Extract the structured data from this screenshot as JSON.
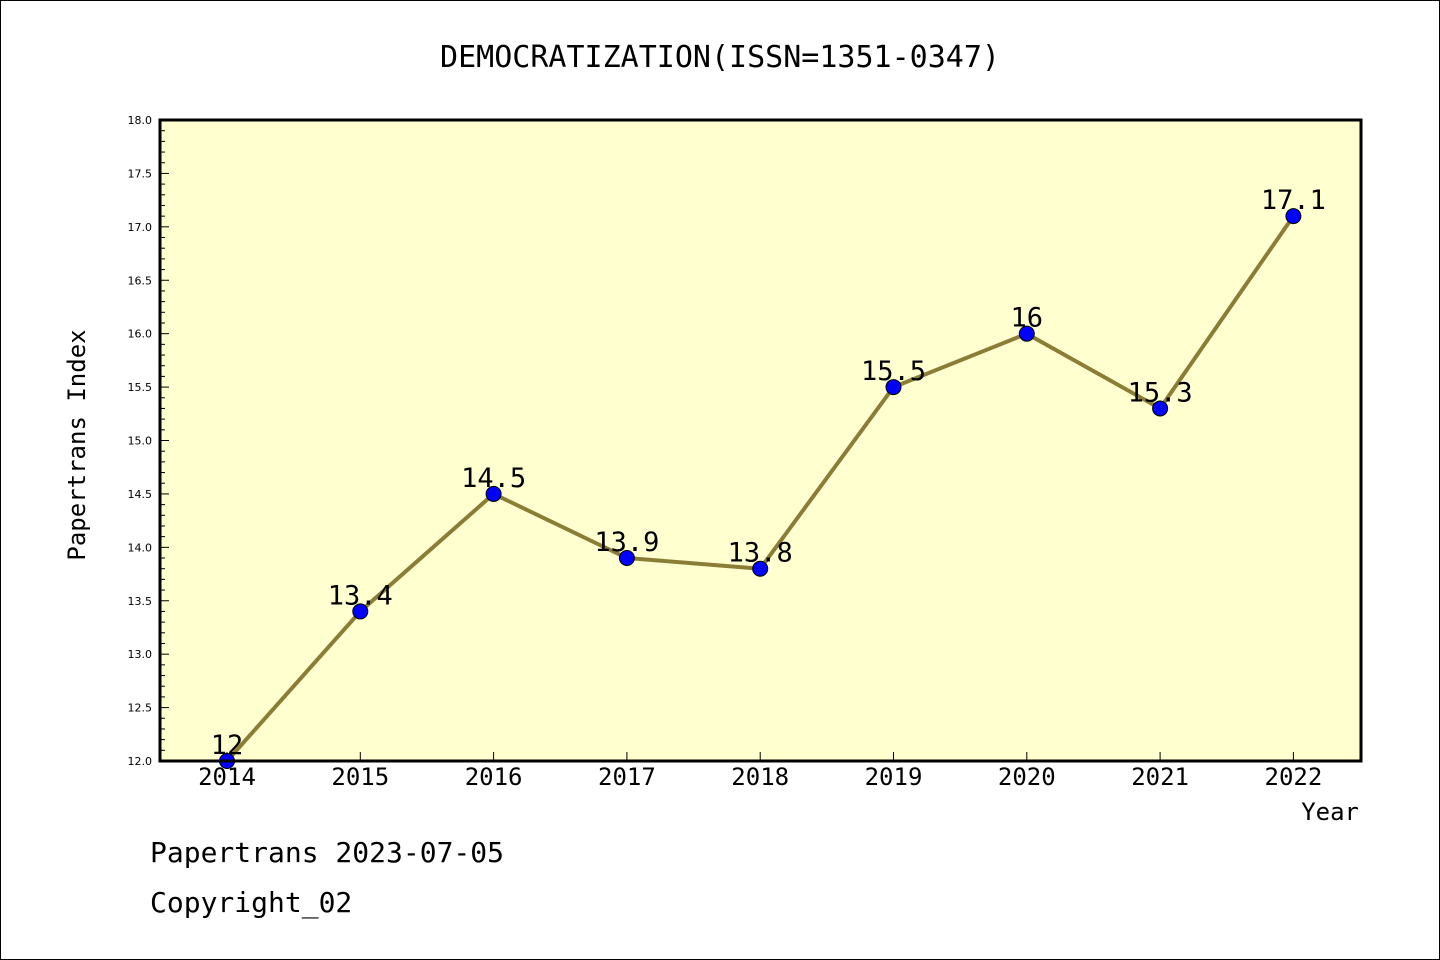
{
  "chart_data": {
    "type": "line",
    "title": "DEMOCRATIZATION(ISSN=1351-0347)",
    "xlabel": "Year",
    "ylabel": "Papertrans Index",
    "x": [
      "2014",
      "2015",
      "2016",
      "2017",
      "2018",
      "2019",
      "2020",
      "2021",
      "2022"
    ],
    "values": [
      12,
      13.4,
      14.5,
      13.9,
      13.8,
      15.5,
      16,
      15.3,
      17.1
    ],
    "data_labels": [
      "12",
      "13.4",
      "14.5",
      "13.9",
      "13.8",
      "15.5",
      "16",
      "15.3",
      "17.1"
    ],
    "ylim": [
      12.0,
      18.0
    ],
    "yticks": [
      "12.0",
      "12.5",
      "13.0",
      "13.5",
      "14.0",
      "14.5",
      "15.0",
      "15.5",
      "16.0",
      "16.5",
      "17.0",
      "17.5",
      "18.0"
    ],
    "grid": false,
    "legend": "none",
    "colors": {
      "line": "#8b7d35",
      "marker": "#0000ff",
      "plot_background": "#ffffd0"
    }
  },
  "footer": {
    "date_line": "Papertrans 2023-07-05",
    "copyright": "Copyright_02"
  }
}
